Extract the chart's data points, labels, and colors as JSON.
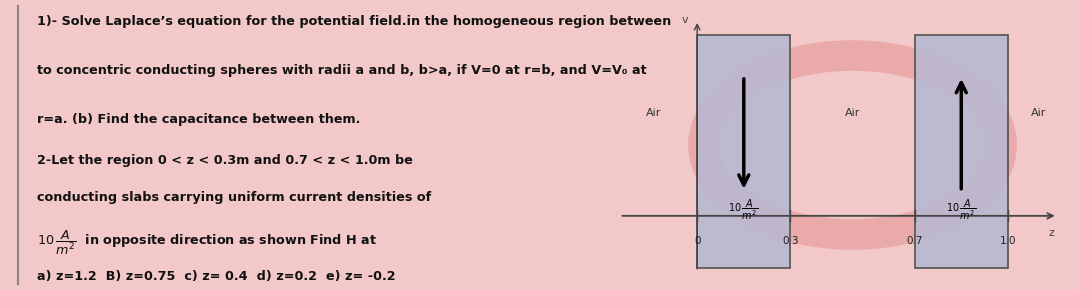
{
  "bg_color": "#f2c8c8",
  "left_panel_bg": "#ffffff",
  "title1": "1)- Solve Laplace’s equation for the potential field.in the homogeneous region between",
  "line2": "to concentric conducting spheres with radii a and b, b>a, if V=0 at r=b, and V=V₀ at",
  "line3": "r=a. (b) Find the capacitance between them.",
  "line4": "2-Let the region 0 < z < 0.3m and 0.7 < z < 1.0m be",
  "line5": "conducting slabs carrying uniform current densities of",
  "line7": "a) z=1.2  B) z=0.75  c) z= 0.4  d) z=0.2  e) z= -0.2",
  "slab_color": "#b8b8d0",
  "xticks": [
    0,
    0.3,
    0.7,
    1.0
  ],
  "xtick_labels": [
    "0",
    "0.3",
    "0.7",
    "1.0"
  ]
}
